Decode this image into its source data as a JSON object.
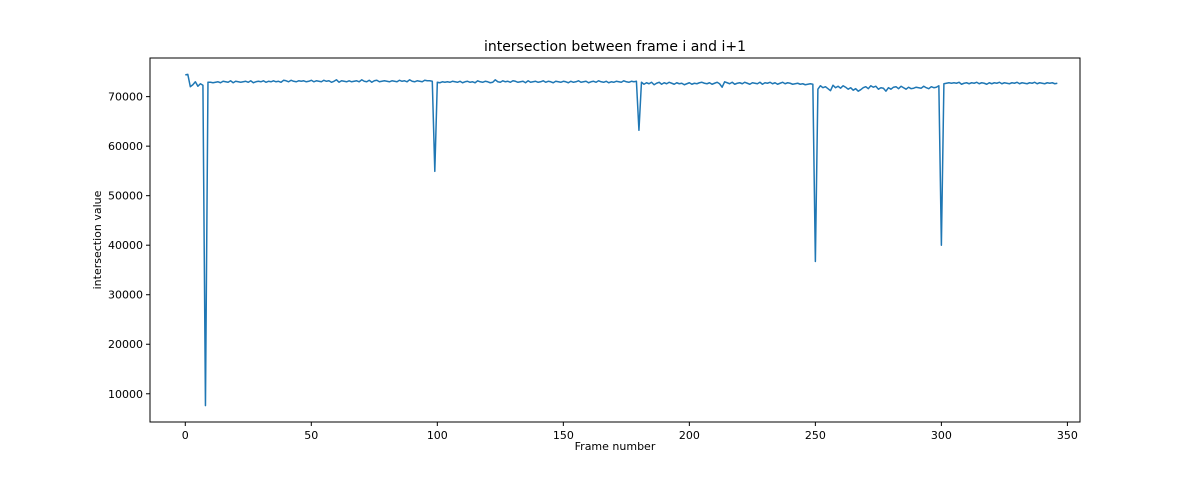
{
  "chart_data": {
    "type": "line",
    "title": "intersection between frame i and i+1",
    "xlabel": "Frame number",
    "ylabel": "intersection value",
    "xlim": [
      -14,
      355
    ],
    "ylim": [
      4300,
      77800
    ],
    "xticks": [
      0,
      50,
      100,
      150,
      200,
      250,
      300,
      350
    ],
    "yticks": [
      10000,
      20000,
      30000,
      40000,
      50000,
      60000,
      70000
    ],
    "grid": false,
    "line_color": "#1f77b4",
    "series": [
      {
        "values": [
          74400,
          74500,
          72000,
          72400,
          73000,
          72100,
          72600,
          72300,
          7600,
          72900,
          72900,
          72800,
          72900,
          73000,
          72800,
          73100,
          73000,
          72900,
          73200,
          72800,
          73100,
          73000,
          72900,
          73000,
          73100,
          72900,
          73200,
          72800,
          73000,
          73100,
          73000,
          73200,
          72900,
          73100,
          73000,
          73200,
          73000,
          73100,
          72900,
          73300,
          73200,
          73000,
          73300,
          73100,
          73000,
          73200,
          73100,
          73200,
          73000,
          73100,
          73300,
          73000,
          73200,
          73100,
          73000,
          73300,
          73100,
          73200,
          72900,
          73100,
          73400,
          72900,
          73200,
          73100,
          73000,
          73200,
          73000,
          73100,
          73200,
          73000,
          73400,
          73100,
          73000,
          73300,
          72900,
          73200,
          73300,
          73000,
          73100,
          73200,
          73100,
          73000,
          73200,
          73100,
          73000,
          73300,
          73100,
          73200,
          73000,
          73400,
          73100,
          73000,
          73200,
          73100,
          73000,
          73300,
          73200,
          73200,
          73100,
          54900,
          72900,
          72800,
          73000,
          72900,
          73000,
          72900,
          73100,
          73000,
          72900,
          73100,
          72800,
          73000,
          73100,
          72900,
          73000,
          72800,
          73200,
          73000,
          72900,
          73100,
          73000,
          72800,
          72900,
          73400,
          73000,
          72900,
          73200,
          73000,
          73100,
          72900,
          73200,
          73100,
          72900,
          73000,
          73100,
          72800,
          73200,
          72900,
          73000,
          73100,
          72900,
          73000,
          73200,
          72900,
          73100,
          73000,
          72800,
          73100,
          73000,
          72900,
          73100,
          73000,
          72800,
          73100,
          72900,
          73000,
          73200,
          72900,
          73000,
          73100,
          72800,
          73000,
          73100,
          72900,
          73200,
          73000,
          72900,
          73100,
          72800,
          73000,
          72900,
          73100,
          73000,
          72900,
          73200,
          73000,
          72900,
          73100,
          73000,
          73100,
          63200,
          72900,
          72500,
          72800,
          72600,
          72900,
          72400,
          72700,
          72900,
          72500,
          72800,
          72600,
          72900,
          72700,
          72500,
          72800,
          72600,
          72700,
          72400,
          72600,
          72800,
          72500,
          72700,
          72600,
          72800,
          72900,
          72700,
          72600,
          72800,
          72500,
          72700,
          72900,
          72600,
          71900,
          73000,
          72800,
          72600,
          72900,
          72500,
          72700,
          72800,
          72600,
          72900,
          72700,
          72500,
          72800,
          72700,
          72600,
          72900,
          72500,
          72800,
          72700,
          72900,
          72600,
          72800,
          72500,
          72700,
          72900,
          72600,
          72800,
          72700,
          72500,
          72600,
          72700,
          72500,
          72600,
          72400,
          72500,
          72600,
          72500,
          36700,
          71500,
          72200,
          71800,
          72000,
          71600,
          71200,
          72300,
          71800,
          72100,
          71700,
          72200,
          71900,
          71500,
          71800,
          71300,
          71600,
          71100,
          71400,
          71800,
          72000,
          71600,
          72200,
          71900,
          72100,
          71500,
          71800,
          71700,
          71100,
          71800,
          71500,
          71900,
          72000,
          71600,
          72100,
          71800,
          71500,
          71900,
          71600,
          71700,
          71900,
          71800,
          71700,
          72100,
          71800,
          71600,
          72000,
          71800,
          71900,
          72200,
          40000,
          72600,
          72700,
          72800,
          72700,
          72800,
          72700,
          72900,
          72500,
          72700,
          72800,
          72600,
          72800,
          72700,
          72900,
          72600,
          72800,
          72700,
          72500,
          72800,
          72600,
          72800,
          72700,
          72900,
          72600,
          72800,
          72700,
          72600,
          72800,
          72700,
          72900,
          72600,
          72800,
          72700,
          72600,
          72800,
          72700,
          72900,
          72600,
          72800,
          72700,
          72600,
          72800,
          72700,
          72800,
          72600,
          72700
        ]
      }
    ]
  }
}
